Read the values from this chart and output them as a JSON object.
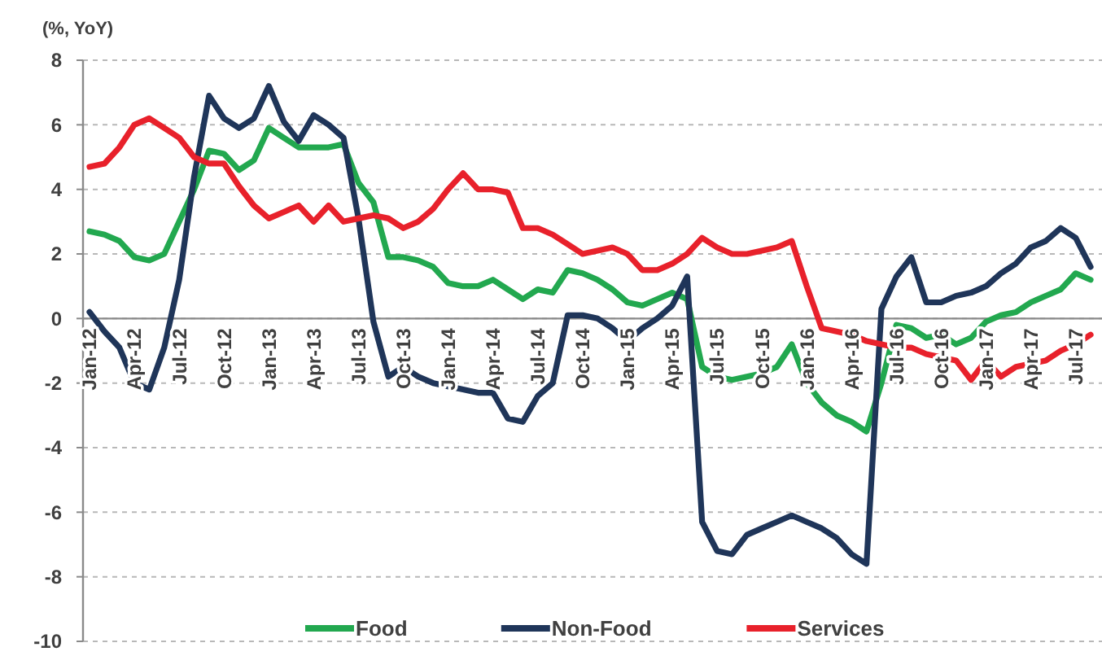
{
  "chart_data": {
    "type": "line",
    "ylabel": "(%, YoY)",
    "categories": [
      "Jan-12",
      null,
      null,
      "Apr-12",
      null,
      null,
      "Jul-12",
      null,
      null,
      "Oct-12",
      null,
      null,
      "Jan-13",
      null,
      null,
      "Apr-13",
      null,
      null,
      "Jul-13",
      null,
      null,
      "Oct-13",
      null,
      null,
      "Jan-14",
      null,
      null,
      "Apr-14",
      null,
      null,
      "Jul-14",
      null,
      null,
      "Oct-14",
      null,
      null,
      "Jan-15",
      null,
      null,
      "Apr-15",
      null,
      null,
      "Jul-15",
      null,
      null,
      "Oct-15",
      null,
      null,
      "Jan-16",
      null,
      null,
      "Apr-16",
      null,
      null,
      "Jul-16",
      null,
      null,
      "Oct-16",
      null,
      null,
      "Jan-17",
      null,
      null,
      "Apr-17",
      null,
      null,
      "Jul-17",
      null
    ],
    "series": [
      {
        "name": "Food",
        "color": "#22a84f",
        "values": [
          2.7,
          2.6,
          2.4,
          1.9,
          1.8,
          2.0,
          3.0,
          4.0,
          5.2,
          5.1,
          4.6,
          4.9,
          5.9,
          5.6,
          5.3,
          5.3,
          5.3,
          5.4,
          4.2,
          3.6,
          1.9,
          1.9,
          1.8,
          1.6,
          1.1,
          1.0,
          1.0,
          1.2,
          0.9,
          0.6,
          0.9,
          0.8,
          1.5,
          1.4,
          1.2,
          0.9,
          0.5,
          0.4,
          0.6,
          0.8,
          0.6,
          -1.5,
          -1.8,
          -1.9,
          -1.8,
          -1.7,
          -1.5,
          -0.8,
          -2.0,
          -2.6,
          -3.0,
          -3.2,
          -3.5,
          -2.0,
          -0.2,
          -0.3,
          -0.6,
          -0.5,
          -0.8,
          -0.6,
          -0.1,
          0.1,
          0.2,
          0.5,
          0.7,
          0.9,
          1.4,
          1.2
        ]
      },
      {
        "name": "Non-Food",
        "color": "#1f3559",
        "values": [
          0.2,
          -0.4,
          -0.9,
          -2.0,
          -2.2,
          -0.9,
          1.2,
          4.4,
          6.9,
          6.2,
          5.9,
          6.2,
          7.2,
          6.1,
          5.5,
          6.3,
          6.0,
          5.6,
          3.1,
          -0.1,
          -1.8,
          -1.5,
          -1.8,
          -2.0,
          -2.1,
          -2.2,
          -2.3,
          -2.3,
          -3.1,
          -3.2,
          -2.4,
          -2.0,
          0.1,
          0.1,
          0.0,
          -0.3,
          -0.7,
          -0.3,
          0.0,
          0.4,
          1.3,
          -6.3,
          -7.2,
          -7.3,
          -6.7,
          -6.5,
          -6.3,
          -6.1,
          -6.3,
          -6.5,
          -6.8,
          -7.3,
          -7.6,
          0.3,
          1.3,
          1.9,
          0.5,
          0.5,
          0.7,
          0.8,
          1.0,
          1.4,
          1.7,
          2.2,
          2.4,
          2.8,
          2.5,
          1.6
        ]
      },
      {
        "name": "Services",
        "color": "#e8212b",
        "values": [
          4.7,
          4.8,
          5.3,
          6.0,
          6.2,
          5.9,
          5.6,
          5.0,
          4.8,
          4.8,
          4.1,
          3.5,
          3.1,
          3.3,
          3.5,
          3.0,
          3.5,
          3.0,
          3.1,
          3.2,
          3.1,
          2.8,
          3.0,
          3.4,
          4.0,
          4.5,
          4.0,
          4.0,
          3.9,
          2.8,
          2.8,
          2.6,
          2.3,
          2.0,
          2.1,
          2.2,
          2.0,
          1.5,
          1.5,
          1.7,
          2.0,
          2.5,
          2.2,
          2.0,
          2.0,
          2.1,
          2.2,
          2.4,
          1.0,
          -0.3,
          -0.4,
          -0.5,
          -0.7,
          -0.8,
          -0.9,
          -0.9,
          -1.1,
          -1.2,
          -1.3,
          -1.9,
          -1.3,
          -1.8,
          -1.5,
          -1.4,
          -1.3,
          -1.0,
          -0.8,
          -0.5
        ]
      }
    ],
    "ylim": [
      -10,
      8
    ],
    "yticks": [
      -10,
      -8,
      -6,
      -4,
      -2,
      0,
      2,
      4,
      6,
      8
    ],
    "grid": "y",
    "legend": "bottom"
  }
}
